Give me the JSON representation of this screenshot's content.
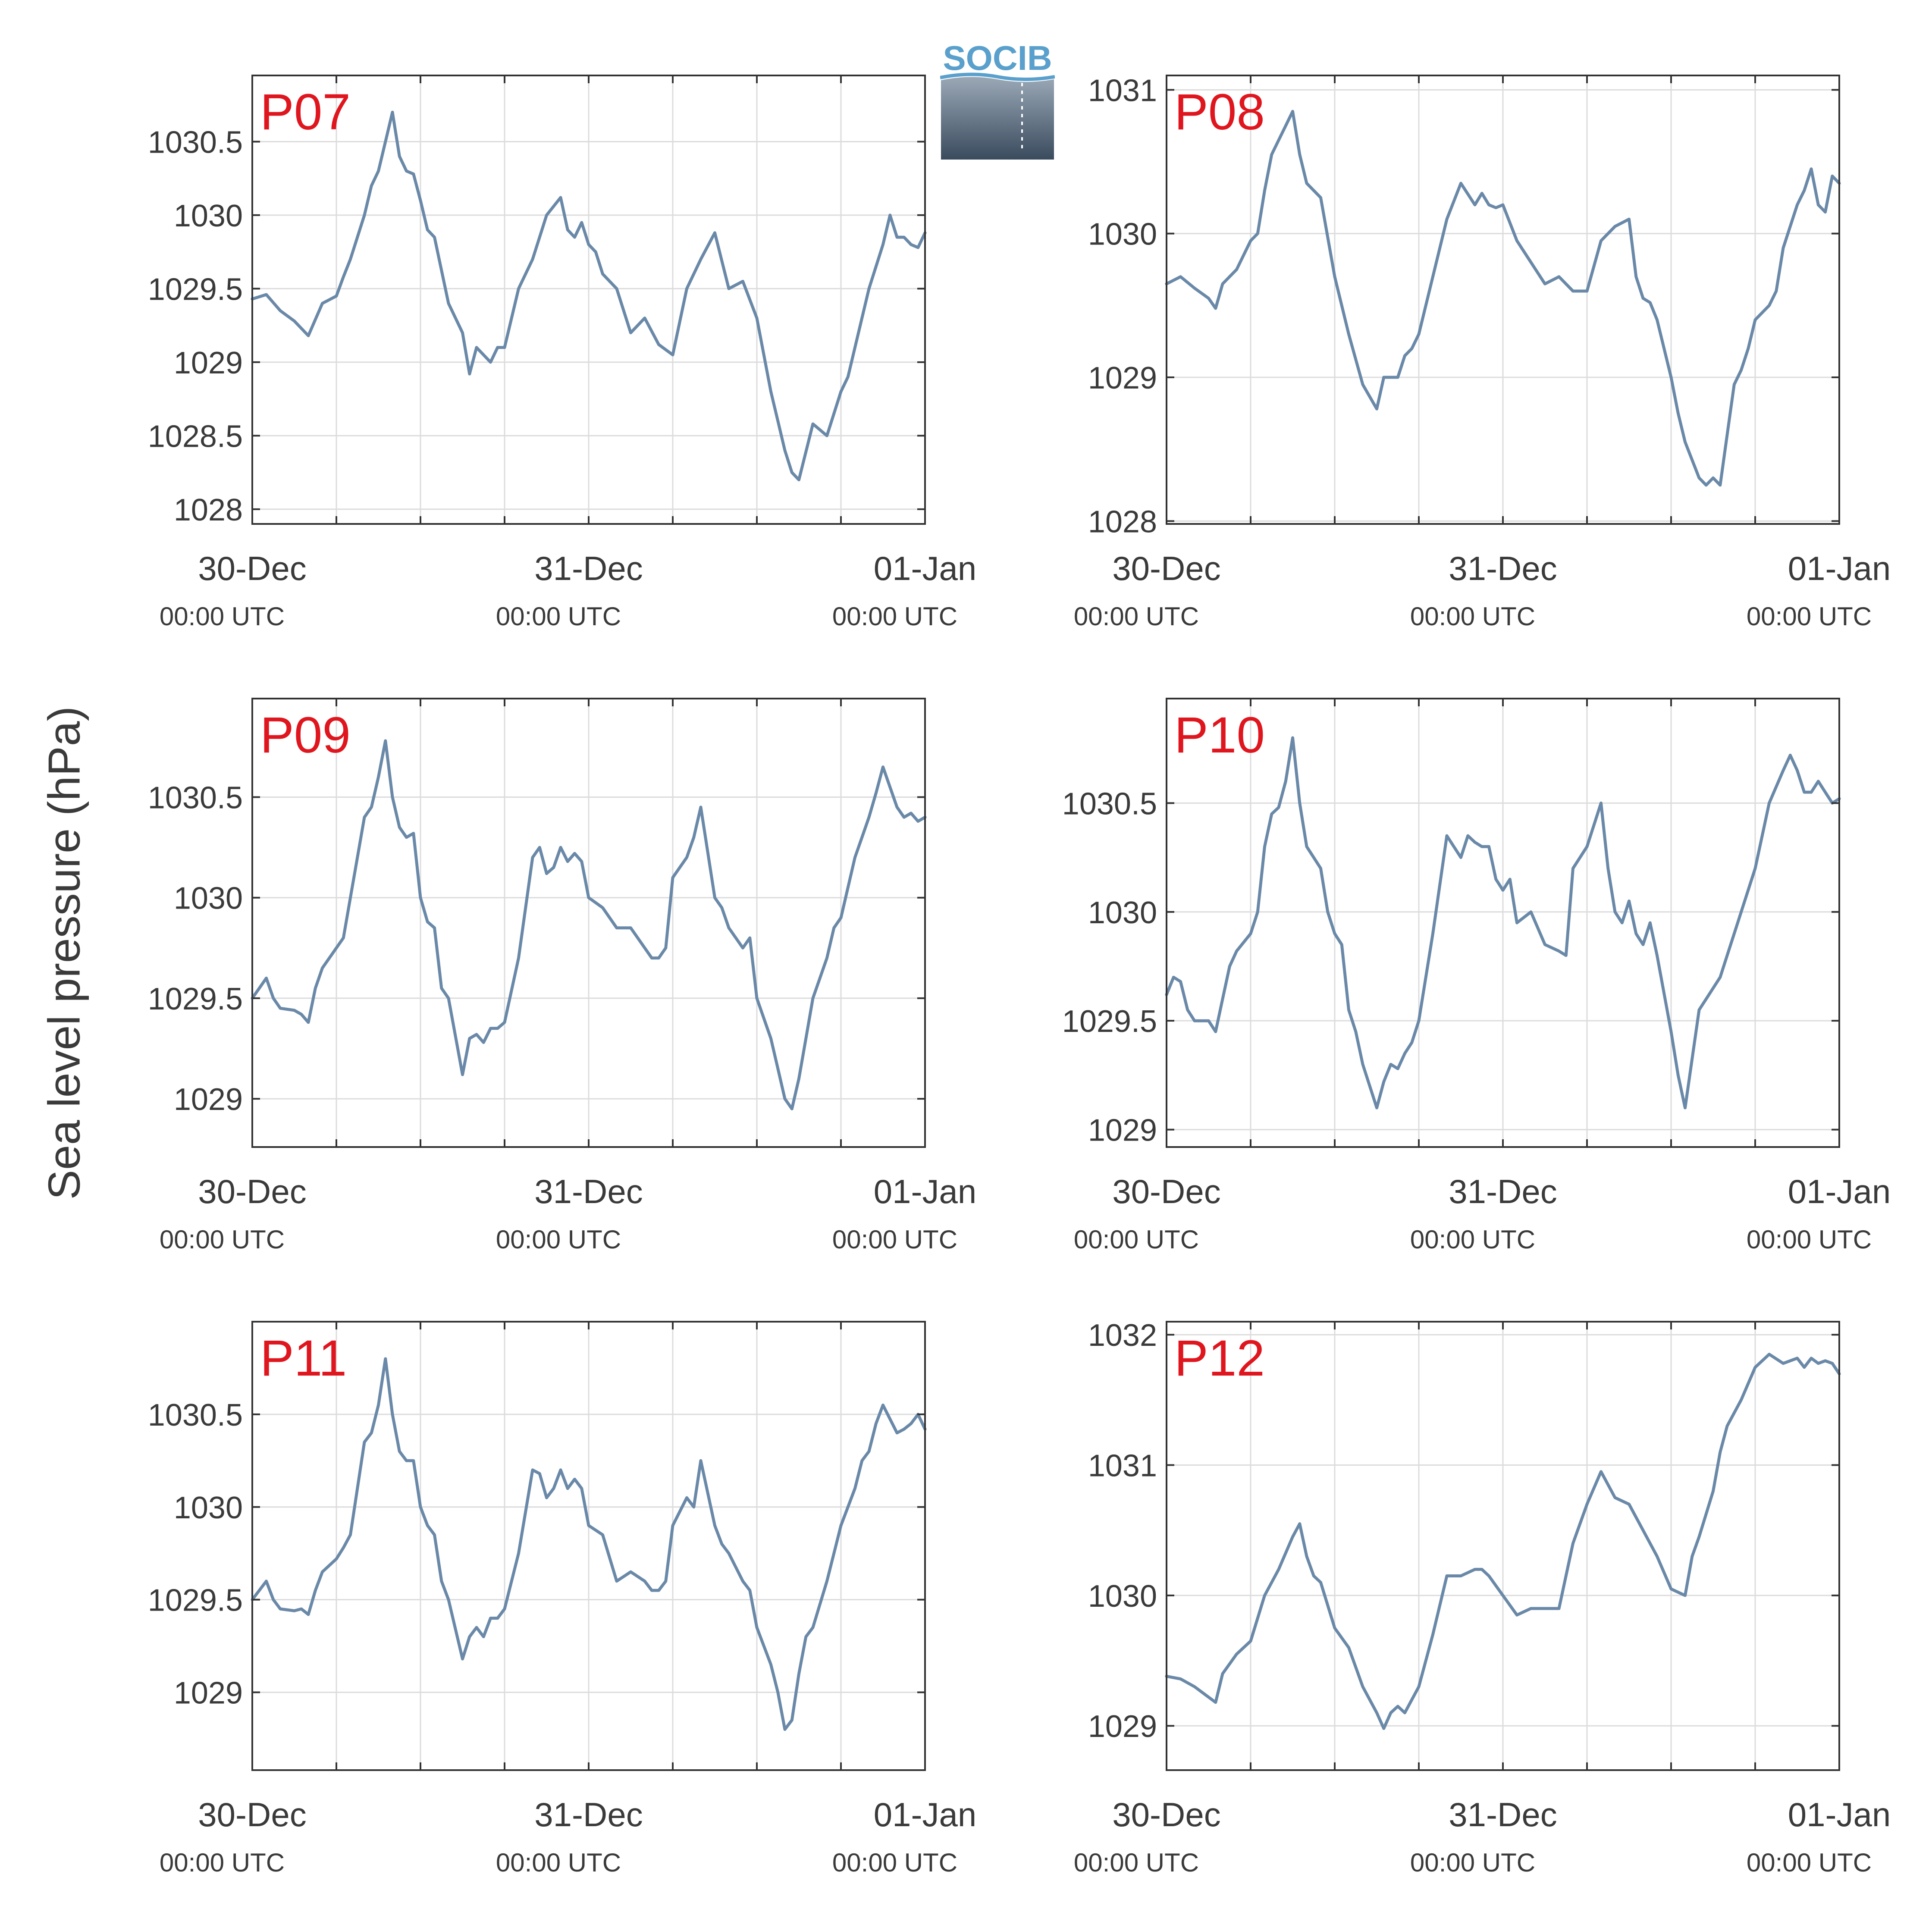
{
  "figure": {
    "ylabel": "Sea level pressure (hPa)",
    "logo_text": "SOCIB",
    "colors": {
      "line": "#6a89a8",
      "panel_label": "#e0161e",
      "text": "#3a3a3a",
      "grid": "#dcdcdc",
      "axis": "#333333"
    }
  },
  "chart_data": [
    {
      "type": "line",
      "label": "P07",
      "x_range": [
        0,
        48
      ],
      "ylim": [
        1027.9,
        1030.95
      ],
      "yticks": [
        1028,
        1028.5,
        1029,
        1029.5,
        1030,
        1030.5
      ],
      "ytick_labels": [
        "1028",
        "1028.5",
        "1029",
        "1029.5",
        "1030",
        "1030.5"
      ],
      "xticks": [
        {
          "x": 0,
          "date": "30-Dec",
          "time": "00:00 UTC"
        },
        {
          "x": 24,
          "date": "31-Dec",
          "time": "00:00 UTC"
        },
        {
          "x": 48,
          "date": "01-Jan",
          "time": "00:00 UTC"
        }
      ],
      "x": [
        0,
        1,
        2,
        3,
        4,
        5,
        6,
        6.5,
        7,
        8,
        8.5,
        9,
        9.5,
        10,
        10.5,
        11,
        11.5,
        12,
        12.5,
        13,
        14,
        15,
        15.5,
        16,
        17,
        17.5,
        18,
        19,
        20,
        21,
        22,
        22.5,
        23,
        23.5,
        24,
        24.5,
        25,
        26,
        27,
        28,
        29,
        30,
        31,
        32,
        33,
        34,
        35,
        36,
        37,
        37.5,
        38,
        38.5,
        39,
        40,
        41,
        42,
        42.5,
        43,
        44,
        45,
        45.5,
        46,
        46.5,
        47,
        47.5,
        48
      ],
      "y": [
        1029.43,
        1029.46,
        1029.35,
        1029.28,
        1029.18,
        1029.4,
        1029.45,
        1029.58,
        1029.7,
        1030,
        1030.2,
        1030.3,
        1030.5,
        1030.7,
        1030.4,
        1030.3,
        1030.28,
        1030.1,
        1029.9,
        1029.85,
        1029.4,
        1029.2,
        1028.92,
        1029.1,
        1029,
        1029.1,
        1029.1,
        1029.5,
        1029.7,
        1030,
        1030.12,
        1029.9,
        1029.85,
        1029.95,
        1029.8,
        1029.75,
        1029.6,
        1029.5,
        1029.2,
        1029.3,
        1029.12,
        1029.05,
        1029.5,
        1029.7,
        1029.88,
        1029.5,
        1029.55,
        1029.3,
        1028.8,
        1028.6,
        1028.4,
        1028.25,
        1028.2,
        1028.58,
        1028.5,
        1028.8,
        1028.9,
        1029.1,
        1029.5,
        1029.8,
        1030,
        1029.85,
        1029.85,
        1029.8,
        1029.78,
        1029.88
      ]
    },
    {
      "type": "line",
      "label": "P08",
      "x_range": [
        0,
        48
      ],
      "ylim": [
        1027.98,
        1031.1
      ],
      "yticks": [
        1028,
        1029,
        1030,
        1031
      ],
      "ytick_labels": [
        "1028",
        "1029",
        "1030",
        "1031"
      ],
      "xticks": [
        {
          "x": 0,
          "date": "30-Dec",
          "time": "00:00 UTC"
        },
        {
          "x": 24,
          "date": "31-Dec",
          "time": "00:00 UTC"
        },
        {
          "x": 48,
          "date": "01-Jan",
          "time": "00:00 UTC"
        }
      ],
      "x": [
        0,
        1,
        2,
        3,
        3.5,
        4,
        5,
        6,
        6.5,
        7,
        7.5,
        8,
        8.5,
        9,
        9.5,
        10,
        11,
        12,
        13,
        14,
        15,
        15.5,
        16,
        16.5,
        17,
        17.5,
        18,
        19,
        20,
        21,
        22,
        22.5,
        23,
        23.5,
        24,
        25,
        26,
        27,
        28,
        29,
        30,
        31,
        32,
        33,
        33.5,
        34,
        34.5,
        35,
        36,
        36.5,
        37,
        38,
        38.5,
        39,
        39.5,
        40,
        40.5,
        41,
        41.5,
        42,
        43,
        43.5,
        44,
        45,
        45.5,
        46,
        46.5,
        47,
        47.5,
        48
      ],
      "y": [
        1029.65,
        1029.7,
        1029.62,
        1029.55,
        1029.48,
        1029.65,
        1029.75,
        1029.95,
        1030,
        1030.3,
        1030.55,
        1030.65,
        1030.75,
        1030.85,
        1030.55,
        1030.35,
        1030.25,
        1029.7,
        1029.3,
        1028.95,
        1028.78,
        1029,
        1029,
        1029,
        1029.15,
        1029.2,
        1029.3,
        1029.7,
        1030.1,
        1030.35,
        1030.2,
        1030.28,
        1030.2,
        1030.18,
        1030.2,
        1029.95,
        1029.8,
        1029.65,
        1029.7,
        1029.6,
        1029.6,
        1029.95,
        1030.05,
        1030.1,
        1029.7,
        1029.55,
        1029.52,
        1029.4,
        1029,
        1028.75,
        1028.55,
        1028.3,
        1028.25,
        1028.3,
        1028.25,
        1028.6,
        1028.95,
        1029.05,
        1029.2,
        1029.4,
        1029.5,
        1029.6,
        1029.9,
        1030.2,
        1030.3,
        1030.45,
        1030.2,
        1030.15,
        1030.4,
        1030.35
      ]
    },
    {
      "type": "line",
      "label": "P09",
      "x_range": [
        0,
        48
      ],
      "ylim": [
        1028.76,
        1030.99
      ],
      "yticks": [
        1029,
        1029.5,
        1030,
        1030.5
      ],
      "ytick_labels": [
        "1029",
        "1029.5",
        "1030",
        "1030.5"
      ],
      "xticks": [
        {
          "x": 0,
          "date": "30-Dec",
          "time": "00:00 UTC"
        },
        {
          "x": 24,
          "date": "31-Dec",
          "time": "00:00 UTC"
        },
        {
          "x": 48,
          "date": "01-Jan",
          "time": "00:00 UTC"
        }
      ],
      "x": [
        0,
        0.5,
        1,
        1.5,
        2,
        3,
        3.5,
        4,
        4.5,
        5,
        6,
        6.5,
        7,
        8,
        8.5,
        9,
        9.5,
        10,
        10.5,
        11,
        11.5,
        12,
        12.5,
        13,
        13.5,
        14,
        15,
        15.5,
        16,
        16.5,
        17,
        17.5,
        18,
        19,
        20,
        20.5,
        21,
        21.5,
        22,
        22.5,
        23,
        23.5,
        24,
        25,
        26,
        27,
        28,
        28.5,
        29,
        29.5,
        30,
        31,
        31.5,
        32,
        33,
        33.5,
        34,
        35,
        35.5,
        36,
        37,
        37.5,
        38,
        38.5,
        39,
        39.5,
        40,
        41,
        41.5,
        42,
        43,
        43.5,
        44,
        44.5,
        45,
        46,
        46.5,
        47,
        47.5,
        48
      ],
      "y": [
        1029.5,
        1029.55,
        1029.6,
        1029.5,
        1029.45,
        1029.44,
        1029.42,
        1029.38,
        1029.55,
        1029.65,
        1029.75,
        1029.8,
        1030,
        1030.4,
        1030.45,
        1030.6,
        1030.78,
        1030.5,
        1030.35,
        1030.3,
        1030.32,
        1030,
        1029.88,
        1029.85,
        1029.55,
        1029.5,
        1029.12,
        1029.3,
        1029.32,
        1029.28,
        1029.35,
        1029.35,
        1029.38,
        1029.7,
        1030.2,
        1030.25,
        1030.12,
        1030.15,
        1030.25,
        1030.18,
        1030.22,
        1030.18,
        1030,
        1029.95,
        1029.85,
        1029.85,
        1029.75,
        1029.7,
        1029.7,
        1029.75,
        1030.1,
        1030.2,
        1030.3,
        1030.45,
        1030,
        1029.95,
        1029.85,
        1029.75,
        1029.8,
        1029.5,
        1029.3,
        1029.15,
        1029,
        1028.95,
        1029.1,
        1029.3,
        1029.5,
        1029.7,
        1029.85,
        1029.9,
        1030.2,
        1030.3,
        1030.4,
        1030.52,
        1030.65,
        1030.45,
        1030.4,
        1030.42,
        1030.38,
        1030.4
      ]
    },
    {
      "type": "line",
      "label": "P10",
      "x_range": [
        0,
        48
      ],
      "ylim": [
        1028.92,
        1030.98
      ],
      "yticks": [
        1029,
        1029.5,
        1030,
        1030.5
      ],
      "ytick_labels": [
        "1029",
        "1029.5",
        "1030",
        "1030.5"
      ],
      "xticks": [
        {
          "x": 0,
          "date": "30-Dec",
          "time": "00:00 UTC"
        },
        {
          "x": 24,
          "date": "31-Dec",
          "time": "00:00 UTC"
        },
        {
          "x": 48,
          "date": "01-Jan",
          "time": "00:00 UTC"
        }
      ],
      "x": [
        0,
        0.5,
        1,
        1.5,
        2,
        3,
        3.5,
        4,
        4.5,
        5,
        6,
        6.5,
        7,
        7.5,
        8,
        8.5,
        9,
        9.5,
        10,
        10.5,
        11,
        11.5,
        12,
        12.5,
        13,
        13.5,
        14,
        15,
        15.5,
        16,
        16.5,
        17,
        17.5,
        18,
        19,
        20,
        21,
        21.5,
        22,
        22.5,
        23,
        23.5,
        24,
        24.5,
        25,
        26,
        27,
        28,
        28.5,
        29,
        29.5,
        30,
        31,
        31.5,
        32,
        32.5,
        33,
        33.5,
        34,
        34.5,
        35,
        36,
        36.5,
        37,
        38,
        38.5,
        39,
        39.5,
        40,
        40.5,
        41,
        42,
        43,
        44,
        44.5,
        45,
        45.5,
        46,
        46.5,
        47,
        47.5,
        48
      ],
      "y": [
        1029.62,
        1029.7,
        1029.68,
        1029.55,
        1029.5,
        1029.5,
        1029.45,
        1029.6,
        1029.75,
        1029.82,
        1029.9,
        1030,
        1030.3,
        1030.45,
        1030.48,
        1030.6,
        1030.8,
        1030.5,
        1030.3,
        1030.25,
        1030.2,
        1030,
        1029.9,
        1029.85,
        1029.55,
        1029.45,
        1029.3,
        1029.1,
        1029.22,
        1029.3,
        1029.28,
        1029.35,
        1029.4,
        1029.5,
        1029.9,
        1030.35,
        1030.25,
        1030.35,
        1030.32,
        1030.3,
        1030.3,
        1030.15,
        1030.1,
        1030.15,
        1029.95,
        1030,
        1029.85,
        1029.82,
        1029.8,
        1030.2,
        1030.25,
        1030.3,
        1030.5,
        1030.2,
        1030,
        1029.95,
        1030.05,
        1029.9,
        1029.85,
        1029.95,
        1029.8,
        1029.45,
        1029.25,
        1029.1,
        1029.55,
        1029.6,
        1029.65,
        1029.7,
        1029.8,
        1029.9,
        1030,
        1030.2,
        1030.5,
        1030.65,
        1030.72,
        1030.65,
        1030.55,
        1030.55,
        1030.6,
        1030.55,
        1030.5,
        1030.52
      ]
    },
    {
      "type": "line",
      "label": "P11",
      "x_range": [
        0,
        48
      ],
      "ylim": [
        1028.58,
        1031.0
      ],
      "yticks": [
        1029,
        1029.5,
        1030,
        1030.5
      ],
      "ytick_labels": [
        "1029",
        "1029.5",
        "1030",
        "1030.5"
      ],
      "xticks": [
        {
          "x": 0,
          "date": "30-Dec",
          "time": "00:00 UTC"
        },
        {
          "x": 24,
          "date": "31-Dec",
          "time": "00:00 UTC"
        },
        {
          "x": 48,
          "date": "01-Jan",
          "time": "00:00 UTC"
        }
      ],
      "x": [
        0,
        0.5,
        1,
        1.5,
        2,
        3,
        3.5,
        4,
        4.5,
        5,
        6,
        6.5,
        7,
        8,
        8.5,
        9,
        9.5,
        10,
        10.5,
        11,
        11.5,
        12,
        12.5,
        13,
        13.5,
        14,
        15,
        15.5,
        16,
        16.5,
        17,
        17.5,
        18,
        19,
        20,
        20.5,
        21,
        21.5,
        22,
        22.5,
        23,
        23.5,
        24,
        25,
        26,
        27,
        28,
        28.5,
        29,
        29.5,
        30,
        31,
        31.5,
        32,
        33,
        33.5,
        34,
        35,
        35.5,
        36,
        37,
        37.5,
        38,
        38.5,
        39,
        39.5,
        40,
        41,
        41.5,
        42,
        43,
        43.5,
        44,
        44.5,
        45,
        46,
        46.5,
        47,
        47.5,
        48
      ],
      "y": [
        1029.5,
        1029.55,
        1029.6,
        1029.5,
        1029.45,
        1029.44,
        1029.45,
        1029.42,
        1029.55,
        1029.65,
        1029.72,
        1029.78,
        1029.85,
        1030.35,
        1030.4,
        1030.55,
        1030.8,
        1030.5,
        1030.3,
        1030.25,
        1030.25,
        1030,
        1029.9,
        1029.85,
        1029.6,
        1029.5,
        1029.18,
        1029.3,
        1029.35,
        1029.3,
        1029.4,
        1029.4,
        1029.45,
        1029.75,
        1030.2,
        1030.18,
        1030.05,
        1030.1,
        1030.2,
        1030.1,
        1030.15,
        1030.1,
        1029.9,
        1029.85,
        1029.6,
        1029.65,
        1029.6,
        1029.55,
        1029.55,
        1029.6,
        1029.9,
        1030.05,
        1030,
        1030.25,
        1029.9,
        1029.8,
        1029.75,
        1029.6,
        1029.55,
        1029.35,
        1029.15,
        1029,
        1028.8,
        1028.85,
        1029.1,
        1029.3,
        1029.35,
        1029.6,
        1029.75,
        1029.9,
        1030.1,
        1030.25,
        1030.3,
        1030.45,
        1030.55,
        1030.4,
        1030.42,
        1030.45,
        1030.5,
        1030.42
      ]
    },
    {
      "type": "line",
      "label": "P12",
      "x_range": [
        0,
        48
      ],
      "ylim": [
        1028.66,
        1032.1
      ],
      "yticks": [
        1029,
        1030,
        1031,
        1032
      ],
      "ytick_labels": [
        "1029",
        "1030",
        "1031",
        "1032"
      ],
      "xticks": [
        {
          "x": 0,
          "date": "30-Dec",
          "time": "00:00 UTC"
        },
        {
          "x": 24,
          "date": "31-Dec",
          "time": "00:00 UTC"
        },
        {
          "x": 48,
          "date": "01-Jan",
          "time": "00:00 UTC"
        }
      ],
      "x": [
        0,
        1,
        2,
        3,
        3.5,
        4,
        5,
        6,
        7,
        8,
        9,
        9.5,
        10,
        10.5,
        11,
        12,
        13,
        14,
        15,
        15.5,
        16,
        16.5,
        17,
        18,
        19,
        20,
        21,
        22,
        22.5,
        23,
        24,
        25,
        26,
        27,
        28,
        29,
        30,
        31,
        32,
        33,
        34,
        35,
        36,
        37,
        37.5,
        38,
        39,
        39.5,
        40,
        41,
        42,
        43,
        44,
        45,
        45.5,
        46,
        46.5,
        47,
        47.5,
        48
      ],
      "y": [
        1029.38,
        1029.36,
        1029.3,
        1029.22,
        1029.18,
        1029.4,
        1029.55,
        1029.65,
        1030,
        1030.2,
        1030.45,
        1030.55,
        1030.3,
        1030.15,
        1030.1,
        1029.75,
        1029.6,
        1029.3,
        1029.1,
        1028.98,
        1029.1,
        1029.15,
        1029.1,
        1029.3,
        1029.7,
        1030.15,
        1030.15,
        1030.2,
        1030.2,
        1030.15,
        1030,
        1029.85,
        1029.9,
        1029.9,
        1029.9,
        1030.4,
        1030.7,
        1030.95,
        1030.75,
        1030.7,
        1030.5,
        1030.3,
        1030.05,
        1030.0,
        1030.3,
        1030.45,
        1030.8,
        1031.1,
        1031.3,
        1031.5,
        1031.75,
        1031.85,
        1031.78,
        1031.82,
        1031.75,
        1031.82,
        1031.78,
        1031.8,
        1031.78,
        1031.7
      ]
    }
  ]
}
